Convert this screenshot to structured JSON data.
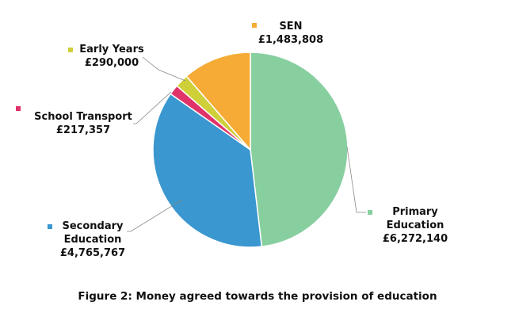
{
  "chart_data": {
    "type": "pie",
    "title": "Figure 2: Money agreed towards the provision of education",
    "categories": [
      "Primary Education",
      "Secondary Education",
      "School Transport",
      "Early Years",
      "SEN"
    ],
    "values": [
      6272140,
      4765767,
      217357,
      290000,
      1483808
    ],
    "value_labels": [
      "£6,272,140",
      "£4,765,767",
      "£217,357",
      "£290,000",
      "£1,483,808"
    ],
    "colors": [
      "#88cfa0",
      "#3a97cf",
      "#e0336a",
      "#cfcf3a",
      "#f5ab35"
    ]
  }
}
